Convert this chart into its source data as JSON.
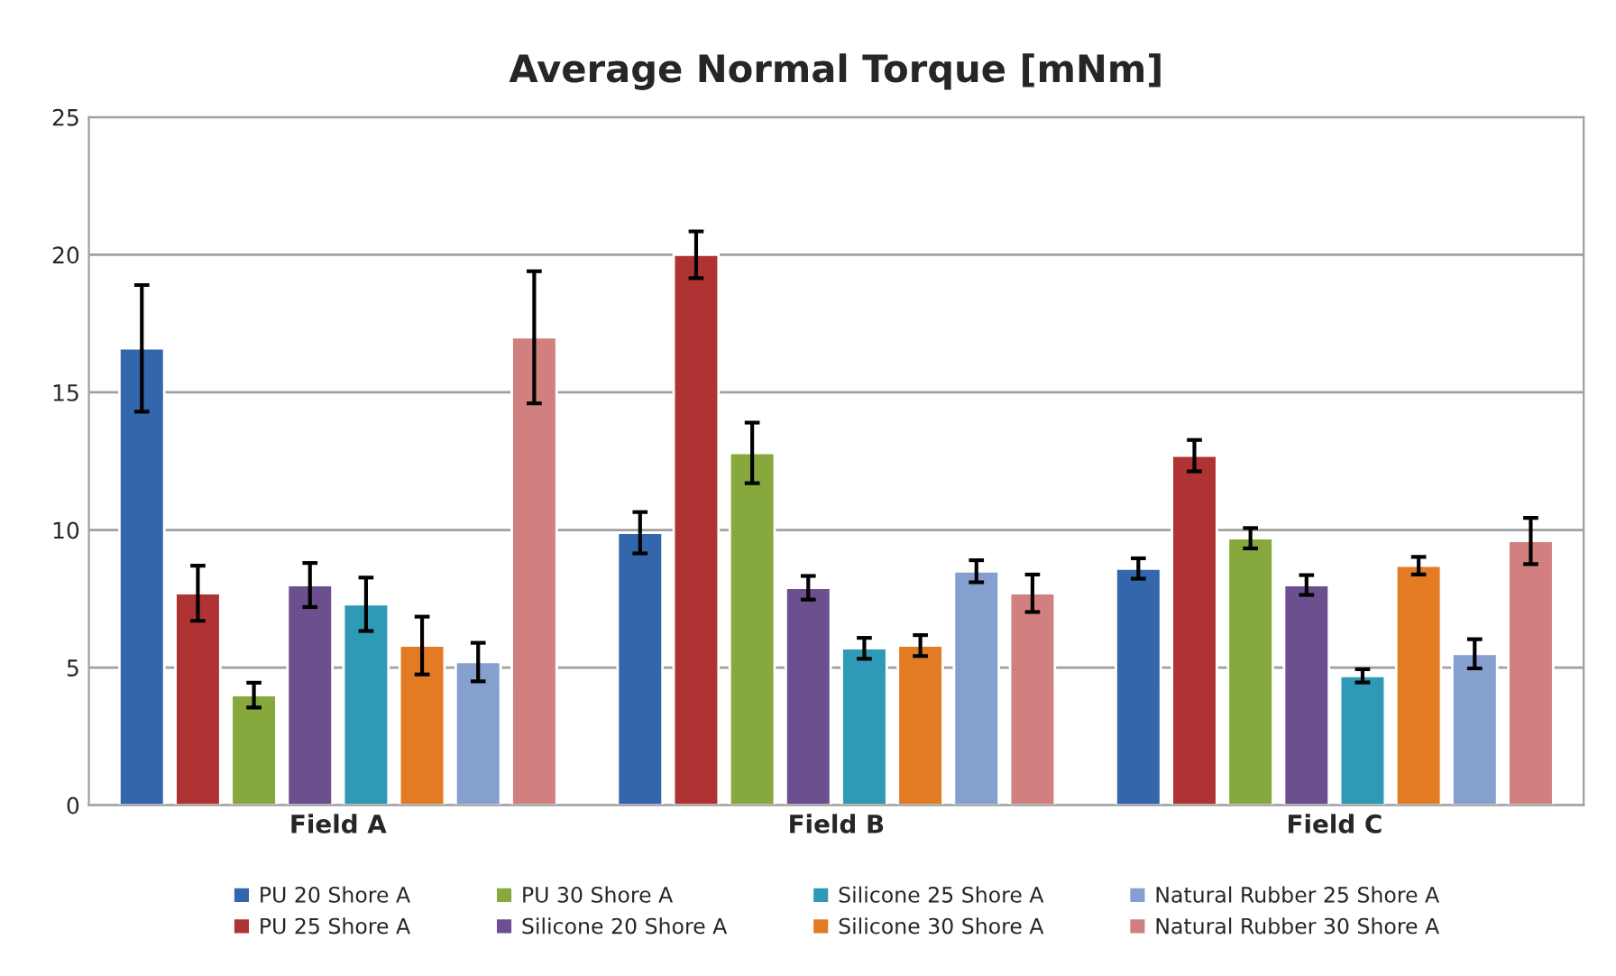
{
  "chart_data": {
    "type": "bar",
    "title": "Average Normal Torque [mNm]",
    "categories": [
      "Field A",
      "Field B",
      "Field C"
    ],
    "ylim": [
      0,
      25
    ],
    "yticks": [
      0,
      5,
      10,
      15,
      20,
      25
    ],
    "grid": "y",
    "legend": "bottom",
    "series": [
      {
        "name": "PU 20 Shore A",
        "color": "#3466ab",
        "values": [
          16.6,
          9.9,
          8.6
        ],
        "errors": [
          2.3,
          0.75,
          0.37
        ]
      },
      {
        "name": "PU 25 Shore A",
        "color": "#b03333",
        "values": [
          7.7,
          20.0,
          12.7
        ],
        "errors": [
          1.0,
          0.85,
          0.57
        ]
      },
      {
        "name": "PU 30 Shore A",
        "color": "#86a83c",
        "values": [
          4.0,
          12.8,
          9.7
        ],
        "errors": [
          0.45,
          1.1,
          0.37
        ]
      },
      {
        "name": "Silicone 20 Shore A",
        "color": "#6b4f8f",
        "values": [
          8.0,
          7.9,
          8.0
        ],
        "errors": [
          0.8,
          0.43,
          0.36
        ]
      },
      {
        "name": "Silicone 25 Shore A",
        "color": "#2e9ab5",
        "values": [
          7.3,
          5.7,
          4.7
        ],
        "errors": [
          0.97,
          0.38,
          0.24
        ]
      },
      {
        "name": "Silicone 30 Shore A",
        "color": "#e37b25",
        "values": [
          5.8,
          5.8,
          8.7
        ],
        "errors": [
          1.05,
          0.38,
          0.32
        ]
      },
      {
        "name": "Natural Rubber 25 Shore A",
        "color": "#859fcf",
        "values": [
          5.2,
          8.5,
          5.5
        ],
        "errors": [
          0.7,
          0.4,
          0.53
        ]
      },
      {
        "name": "Natural Rubber 30 Shore A",
        "color": "#d17f7f",
        "values": [
          17.0,
          7.7,
          9.6
        ],
        "errors": [
          2.4,
          0.68,
          0.84
        ]
      }
    ]
  }
}
